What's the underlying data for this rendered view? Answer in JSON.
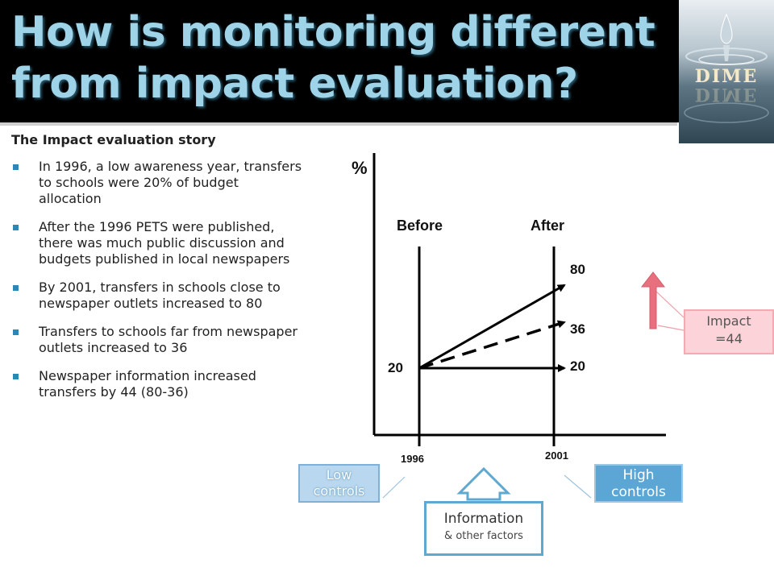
{
  "slide": {
    "title_line1": "How is monitoring different",
    "title_line2": "from impact evaluation?",
    "logo_text": "DIME",
    "story_heading": "The Impact evaluation story",
    "bullets": [
      "In 1996, a low awareness year, transfers to schools were 20% of budget allocation",
      "After the 1996 PETS were published, there was much public discussion and budgets published in local newspapers",
      "By 2001, transfers in schools close to newspaper outlets increased to 80",
      "Transfers to schools far from newspaper outlets increased to 36",
      "Newspaper information increased transfers by 44 (80-36)"
    ]
  },
  "diagram": {
    "y_axis_label": "%",
    "before_label": "Before",
    "after_label": "After",
    "start_value": "20",
    "end_values": {
      "high": "80",
      "mid": "36",
      "low": "20"
    },
    "year_start": "1996",
    "year_end": "2001"
  },
  "callouts": {
    "low_controls": "Low controls",
    "high_controls": "High controls",
    "impact_line1": "Impact",
    "impact_line2": "=44",
    "info_main": "Information",
    "info_sub": "& other factors"
  },
  "colors": {
    "title_text": "#9fd3e8",
    "bullet": "#2b88b6",
    "impact_arrow": "#e8707e",
    "info_arrow": "#5fa8cf"
  }
}
